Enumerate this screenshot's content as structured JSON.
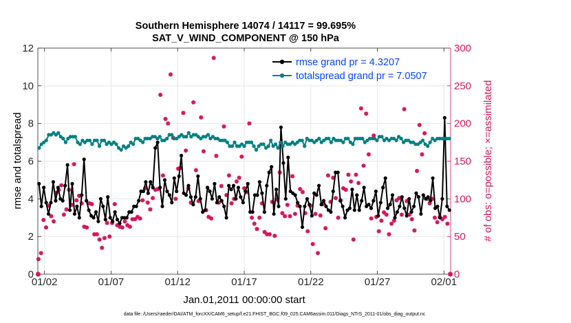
{
  "chart_data": {
    "type": "line",
    "title_line1": "Southern Hemisphere 14074 / 14117 = 99.695%",
    "title_line2": "SAT_V_WIND_COMPONENT @ 150 hPa",
    "xlabel": "Jan.01,2011 00:00:00 start",
    "ylabel_left": "rmse and totalspread",
    "ylabel_right": "# of obs: o=possible; ×=assimilated",
    "footer": "data file: /Users/raeder/DAI/ATM_forcXX/CAM6_setup/f.e21.FHIST_BGC.f09_025.CAM6assim.011/Diags_NTrS_2011-01/obs_diag_output.nc",
    "x_tick_labels": [
      "01/02",
      "01/07",
      "01/12",
      "01/17",
      "01/22",
      "01/27",
      "02/01"
    ],
    "x_tick_values": [
      1,
      6,
      11,
      16,
      21,
      26,
      31
    ],
    "x_units": "days after Jan.01,2011 00:00:00",
    "xlim": [
      0.5,
      31.5
    ],
    "ylim_left": [
      0,
      12
    ],
    "y_ticks_left": [
      "0",
      "2",
      "4",
      "6",
      "8",
      "10",
      "12"
    ],
    "ylim_right": [
      0,
      300
    ],
    "y_ticks_right": [
      "0",
      "50",
      "100",
      "150",
      "200",
      "250",
      "300"
    ],
    "grid": true,
    "legend_position": "top-right",
    "colors": {
      "rmse": "#000000",
      "totalspread": "#008080",
      "obs": "#d6175a",
      "legend_text": "#0046ff"
    },
    "series": [
      {
        "name": "rmse grand pr = 4.3207",
        "axis": "left",
        "values": [
          4.8,
          3.6,
          4.6,
          3.8,
          3.2,
          3.8,
          4.9,
          3.9,
          4.6,
          4.0,
          3.9,
          4.7,
          5.8,
          3.4,
          4.8,
          3.2,
          3.6,
          3.0,
          4.2,
          6.1,
          3.9,
          3.4,
          3.1,
          3.0,
          3.3,
          2.8,
          4.0,
          3.6,
          2.9,
          4.1,
          3.0,
          2.8,
          3.3,
          2.9,
          2.7,
          3.0,
          3.0,
          3.0,
          3.3,
          3.3,
          3.6,
          3.6,
          3.9,
          4.4,
          4.4,
          4.9,
          4.3,
          4.9,
          4.6,
          6.7,
          7.0,
          4.6,
          3.6,
          5.0,
          4.4,
          4.2,
          3.8,
          5.1,
          4.4,
          5.2,
          6.3,
          4.3,
          4.2,
          4.7,
          4.1,
          3.7,
          4.1,
          5.2,
          4.0,
          3.3,
          3.4,
          4.6,
          4.4,
          4.0,
          4.8,
          3.8,
          4.1,
          3.9,
          3.6,
          3.0,
          4.7,
          4.5,
          4.7,
          4.0,
          4.6,
          4.1,
          3.8,
          4.4,
          4.8,
          3.3,
          3.3,
          4.2,
          4.2,
          4.9,
          4.3,
          3.3,
          4.7,
          5.4,
          5.7,
          3.2,
          4.5,
          3.6,
          7.8,
          5.9,
          4.0,
          6.2,
          4.4,
          4.3,
          4.2,
          3.8,
          3.6,
          2.5,
          3.6,
          4.0,
          3.7,
          3.1,
          4.3,
          4.2,
          4.7,
          3.7,
          3.9,
          3.6,
          3.4,
          3.3,
          4.4,
          5.4,
          5.4,
          3.9,
          3.6,
          3.0,
          3.4,
          3.5,
          4.5,
          3.4,
          4.2,
          3.4,
          3.9,
          4.6,
          3.6,
          3.7,
          3.5,
          3.9,
          4.4,
          3.1,
          3.8,
          4.6,
          5.1,
          3.5,
          3.7,
          4.2,
          3.0,
          3.3,
          3.6,
          4.1,
          3.5,
          3.1,
          4.0,
          3.3,
          3.6,
          4.3,
          4.1,
          3.2,
          4.2,
          4.0,
          4.1,
          3.9,
          5.1,
          3.5,
          3.6,
          3.0,
          4.0,
          8.3,
          3.6,
          3.4
        ]
      },
      {
        "name": "totalspread grand pr = 7.0507",
        "axis": "left",
        "values": [
          6.7,
          6.9,
          7.0,
          7.1,
          7.4,
          7.4,
          7.5,
          7.4,
          7.5,
          7.3,
          7.2,
          7.0,
          7.2,
          7.3,
          7.3,
          7.3,
          7.0,
          6.9,
          7.1,
          7.0,
          7.1,
          7.1,
          6.9,
          7.1,
          7.1,
          6.8,
          7.1,
          7.1,
          6.9,
          7.0,
          6.9,
          7.0,
          6.9,
          6.7,
          6.6,
          6.8,
          6.7,
          6.8,
          7.0,
          6.9,
          7.2,
          7.2,
          7.1,
          7.0,
          7.2,
          7.2,
          7.2,
          7.3,
          7.3,
          7.2,
          7.3,
          7.1,
          7.1,
          7.2,
          7.4,
          7.4,
          7.2,
          7.2,
          7.3,
          7.4,
          7.3,
          7.3,
          7.5,
          7.3,
          7.4,
          7.4,
          7.3,
          7.2,
          7.3,
          7.3,
          7.4,
          7.2,
          7.3,
          7.2,
          7.2,
          7.1,
          7.1,
          7.1,
          7.0,
          6.8,
          6.8,
          7.0,
          6.8,
          6.8,
          6.9,
          6.8,
          7.0,
          7.0,
          7.0,
          6.8,
          6.6,
          6.8,
          6.9,
          6.9,
          6.7,
          6.8,
          7.1,
          6.8,
          6.9,
          6.7,
          7.0,
          6.8,
          7.0,
          6.9,
          6.9,
          7.0,
          6.9,
          7.0,
          7.1,
          7.1,
          6.8,
          7.2,
          7.1,
          7.1,
          7.0,
          7.1,
          7.2,
          7.0,
          7.1,
          7.2,
          7.2,
          7.0,
          7.2,
          7.1,
          7.1,
          7.1,
          7.0,
          7.2,
          7.2,
          7.0,
          6.9,
          7.2,
          7.2,
          7.2,
          7.2,
          7.0,
          7.1,
          7.2,
          7.2,
          7.2,
          7.1,
          7.3,
          7.3,
          7.1,
          7.2,
          7.1,
          7.2,
          7.2,
          7.1,
          7.3,
          7.2,
          7.0,
          7.1,
          7.1,
          7.0,
          7.0,
          6.9,
          6.9,
          7.0,
          7.1,
          6.9,
          6.8,
          7.0,
          7.2,
          7.1,
          7.2,
          7.2,
          7.2,
          7.2,
          7.2,
          7.2
        ]
      }
    ],
    "obs_counts": [
      20,
      0,
      28,
      0,
      72,
      0,
      62,
      0,
      91,
      0,
      77,
      0,
      70,
      0,
      108,
      0,
      112,
      0,
      118,
      0,
      79,
      0,
      86,
      0,
      112,
      0,
      92,
      0,
      146,
      0,
      98,
      0,
      104,
      0,
      94,
      0,
      63,
      0,
      62,
      0,
      94,
      0,
      93,
      0,
      53,
      0,
      53,
      0,
      46,
      0,
      35,
      0,
      48,
      0,
      68,
      0,
      50,
      0,
      68,
      0,
      93,
      0,
      65,
      0,
      63,
      0,
      62,
      0,
      70,
      0,
      65,
      0,
      63,
      0,
      73,
      0,
      73,
      0,
      76,
      0,
      74,
      0,
      98,
      0,
      114,
      0,
      95,
      0,
      86,
      0,
      101,
      0,
      112,
      0,
      113,
      0,
      238,
      0,
      131,
      0,
      206,
      0,
      200,
      0,
      265,
      0,
      181,
      0,
      100,
      0,
      140,
      0,
      141,
      0,
      214,
      0,
      164,
      0,
      114,
      0,
      95,
      0,
      228,
      0,
      138,
      0,
      97,
      0,
      208,
      0,
      163,
      0,
      85,
      0,
      76,
      0,
      74,
      0,
      287,
      0,
      157,
      0,
      95,
      0,
      117,
      0,
      196,
      0,
      105,
      0,
      131,
      0,
      94,
      0,
      100,
      0,
      123,
      0,
      128,
      0,
      156,
      0,
      114,
      0,
      109,
      0,
      200,
      0,
      75,
      0,
      67,
      0,
      60,
      0,
      75,
      0,
      94,
      0,
      56,
      0,
      53,
      0,
      53,
      0,
      96,
      0,
      51,
      0,
      99,
      0,
      135,
      0,
      81,
      0,
      77,
      0,
      92,
      0,
      77,
      0,
      130,
      0,
      80,
      0,
      91,
      0,
      113,
      0,
      109,
      0,
      81,
      0,
      57,
      0,
      91,
      0,
      40,
      0,
      80,
      0,
      28,
      0,
      78,
      0,
      93,
      0,
      61,
      0,
      131,
      0,
      96,
      0,
      128,
      0,
      101,
      0,
      75,
      0,
      98,
      0,
      114,
      0,
      112,
      0,
      132,
      0,
      123,
      0,
      46,
      0,
      132,
      0,
      121,
      0,
      220,
      0,
      144,
      0,
      213,
      0,
      159,
      0,
      74,
      0,
      184,
      0,
      76,
      0,
      57,
      0,
      71,
      0,
      82,
      0,
      79,
      0,
      53,
      0,
      67,
      0,
      71,
      0,
      98,
      0,
      101,
      0,
      79,
      0,
      219,
      0,
      97,
      0,
      79,
      0,
      73,
      0,
      58,
      0,
      137,
      0,
      198,
      0,
      159,
      0,
      187,
      0,
      100,
      0,
      94,
      0,
      100,
      0,
      75,
      0,
      69,
      0,
      76,
      0,
      73,
      0,
      76,
      0,
      67,
      0,
      0
    ]
  }
}
